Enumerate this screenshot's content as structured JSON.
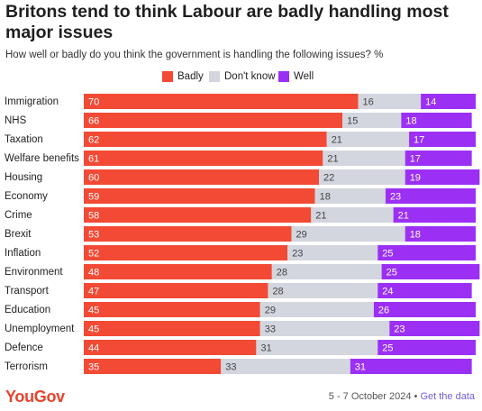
{
  "title": "Britons tend to think Labour are badly handling most major issues",
  "subtitle": "How well or badly do you think the government is handling the following issues? %",
  "colors": {
    "badly": "#f24a34",
    "dont_know": "#d3d6de",
    "well": "#9b30f4",
    "logo": "#e8432d",
    "link": "#6f5fd6"
  },
  "chart_data": {
    "type": "bar",
    "orientation": "horizontal",
    "stacked": true,
    "categories": [
      "Immigration",
      "NHS",
      "Taxation",
      "Welfare benefits",
      "Housing",
      "Economy",
      "Crime",
      "Brexit",
      "Inflation",
      "Environment",
      "Transport",
      "Education",
      "Unemployment",
      "Defence",
      "Terrorism"
    ],
    "series": [
      {
        "name": "Badly",
        "color": "#f24a34",
        "values": [
          70,
          66,
          62,
          61,
          60,
          59,
          58,
          53,
          52,
          48,
          47,
          45,
          45,
          44,
          35
        ]
      },
      {
        "name": "Don't know",
        "color": "#d3d6de",
        "values": [
          16,
          15,
          21,
          21,
          22,
          18,
          21,
          29,
          23,
          28,
          28,
          29,
          33,
          31,
          33
        ]
      },
      {
        "name": "Well",
        "color": "#9b30f4",
        "values": [
          14,
          18,
          17,
          17,
          19,
          23,
          21,
          18,
          25,
          25,
          24,
          26,
          23,
          25,
          31
        ]
      }
    ],
    "legend_position": "top-center",
    "grid": false
  },
  "footer": {
    "logo": "YouGov",
    "date": "5 - 7 October 2024 • ",
    "link": "Get the data"
  }
}
